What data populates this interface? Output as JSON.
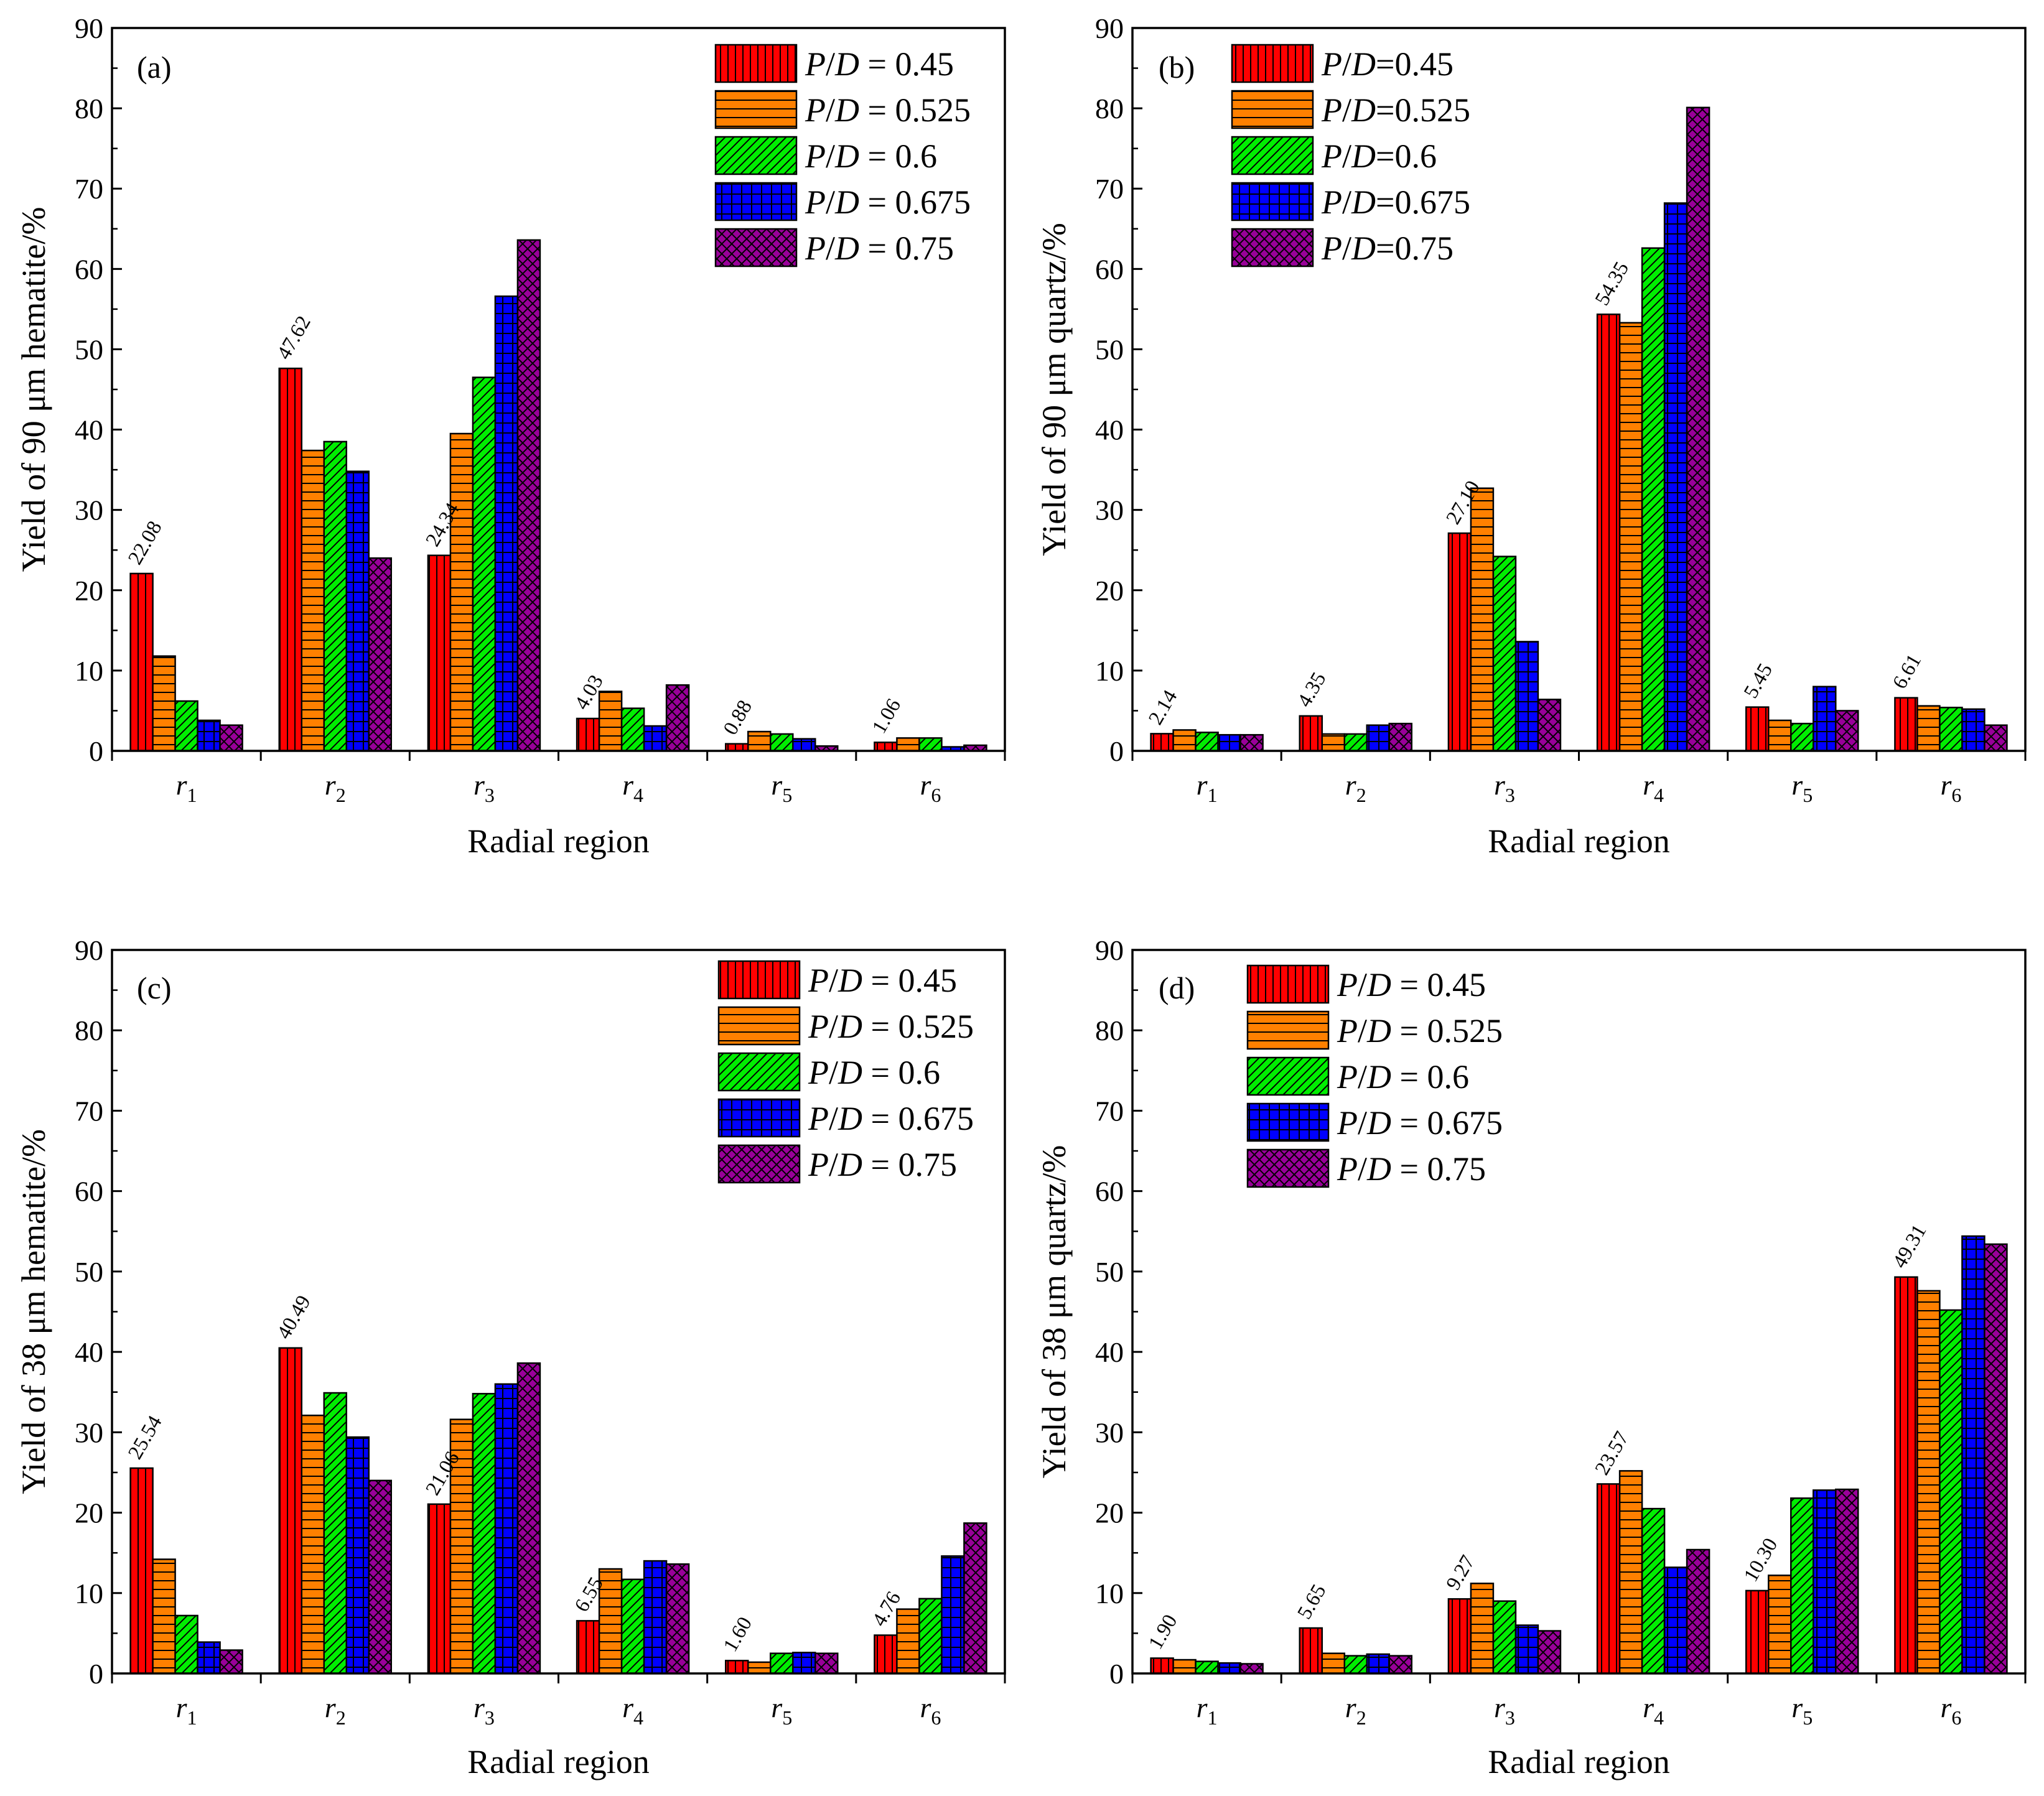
{
  "chart_data": [
    {
      "type": "bar",
      "panel": "(a)",
      "ylabel": "Yield of 90 μm hematite/%",
      "xlabel": "Radial region",
      "ylim": [
        0,
        90
      ],
      "yticks": [
        0,
        10,
        20,
        30,
        40,
        50,
        60,
        70,
        80,
        90
      ],
      "categories": [
        {
          "base": "r",
          "sub": "1"
        },
        {
          "base": "r",
          "sub": "2"
        },
        {
          "base": "r",
          "sub": "3"
        },
        {
          "base": "r",
          "sub": "4"
        },
        {
          "base": "r",
          "sub": "5"
        },
        {
          "base": "r",
          "sub": "6"
        }
      ],
      "legend_style": "spaced",
      "legend_position": "top-right",
      "series": [
        {
          "name": "0.45",
          "values": [
            22.08,
            47.62,
            24.34,
            4.03,
            0.88,
            1.06
          ],
          "labels": [
            "22.08",
            "47.62",
            "24.34",
            "4.03",
            "0.88",
            "1.06"
          ]
        },
        {
          "name": "0.525",
          "values": [
            11.8,
            37.4,
            39.5,
            7.4,
            2.4,
            1.6
          ]
        },
        {
          "name": "0.6",
          "values": [
            6.2,
            38.5,
            46.5,
            5.3,
            2.1,
            1.6
          ]
        },
        {
          "name": "0.675",
          "values": [
            3.8,
            34.8,
            56.6,
            3.1,
            1.5,
            0.5
          ]
        },
        {
          "name": "0.75",
          "values": [
            3.2,
            24.0,
            63.6,
            8.2,
            0.6,
            0.7
          ]
        }
      ]
    },
    {
      "type": "bar",
      "panel": "(b)",
      "ylabel": "Yield of 90 μm quartz/%",
      "xlabel": "Radial region",
      "ylim": [
        0,
        90
      ],
      "yticks": [
        0,
        10,
        20,
        30,
        40,
        50,
        60,
        70,
        80,
        90
      ],
      "categories": [
        {
          "base": "r",
          "sub": "1"
        },
        {
          "base": "r",
          "sub": "2"
        },
        {
          "base": "r",
          "sub": "3"
        },
        {
          "base": "r",
          "sub": "4"
        },
        {
          "base": "r",
          "sub": "5"
        },
        {
          "base": "r",
          "sub": "6"
        }
      ],
      "legend_style": "compact",
      "legend_position": "top-left",
      "series": [
        {
          "name": "0.45",
          "values": [
            2.14,
            4.35,
            27.1,
            54.35,
            5.45,
            6.61
          ],
          "labels": [
            "2.14",
            "4.35",
            "27.10",
            "54.35",
            "5.45",
            "6.61"
          ]
        },
        {
          "name": "0.525",
          "values": [
            2.6,
            2.1,
            32.7,
            53.3,
            3.8,
            5.6
          ]
        },
        {
          "name": "0.6",
          "values": [
            2.3,
            2.1,
            24.2,
            62.6,
            3.4,
            5.4
          ]
        },
        {
          "name": "0.675",
          "values": [
            2.0,
            3.2,
            13.6,
            68.2,
            8.0,
            5.2
          ]
        },
        {
          "name": "0.75",
          "values": [
            2.0,
            3.4,
            6.4,
            80.1,
            5.0,
            3.2
          ]
        }
      ]
    },
    {
      "type": "bar",
      "panel": "(c)",
      "ylabel": "Yield of 38 μm hematite/%",
      "xlabel": "Radial region",
      "ylim": [
        0,
        90
      ],
      "yticks": [
        0,
        10,
        20,
        30,
        40,
        50,
        60,
        70,
        80,
        90
      ],
      "categories": [
        {
          "base": "r",
          "sub": "1"
        },
        {
          "base": "r",
          "sub": "2"
        },
        {
          "base": "r",
          "sub": "3"
        },
        {
          "base": "r",
          "sub": "4"
        },
        {
          "base": "r",
          "sub": "5"
        },
        {
          "base": "r",
          "sub": "6"
        }
      ],
      "legend_style": "spaced",
      "legend_position": "top-right",
      "series": [
        {
          "name": "0.45",
          "values": [
            25.54,
            40.49,
            21.06,
            6.55,
            1.6,
            4.76
          ],
          "labels": [
            "25.54",
            "40.49",
            "21.06",
            "6.55",
            "1.60",
            "4.76"
          ]
        },
        {
          "name": "0.525",
          "values": [
            14.2,
            32.1,
            31.6,
            13.0,
            1.4,
            8.0
          ]
        },
        {
          "name": "0.6",
          "values": [
            7.2,
            34.9,
            34.8,
            11.7,
            2.5,
            9.3
          ]
        },
        {
          "name": "0.675",
          "values": [
            3.9,
            29.4,
            36.0,
            14.0,
            2.6,
            14.6
          ]
        },
        {
          "name": "0.75",
          "values": [
            2.9,
            24.0,
            38.6,
            13.6,
            2.5,
            18.7
          ]
        }
      ]
    },
    {
      "type": "bar",
      "panel": "(d)",
      "ylabel": "Yield of 38 μm quartz/%",
      "xlabel": "Radial region",
      "ylim": [
        0,
        90
      ],
      "yticks": [
        0,
        10,
        20,
        30,
        40,
        50,
        60,
        70,
        80,
        90
      ],
      "categories": [
        {
          "base": "r",
          "sub": "1"
        },
        {
          "base": "r",
          "sub": "2"
        },
        {
          "base": "r",
          "sub": "3"
        },
        {
          "base": "r",
          "sub": "4"
        },
        {
          "base": "r",
          "sub": "5"
        },
        {
          "base": "r",
          "sub": "6"
        }
      ],
      "legend_style": "spaced",
      "legend_position": "top-left",
      "series": [
        {
          "name": "0.45",
          "values": [
            1.9,
            5.65,
            9.27,
            23.57,
            10.3,
            49.31
          ],
          "labels": [
            "1.90",
            "5.65",
            "9.27",
            "23.57",
            "10.30",
            "49.31"
          ]
        },
        {
          "name": "0.525",
          "values": [
            1.7,
            2.5,
            11.2,
            25.2,
            12.2,
            47.6
          ]
        },
        {
          "name": "0.6",
          "values": [
            1.5,
            2.2,
            9.0,
            20.5,
            21.8,
            45.2
          ]
        },
        {
          "name": "0.675",
          "values": [
            1.3,
            2.4,
            6.0,
            13.2,
            22.8,
            54.4
          ]
        },
        {
          "name": "0.75",
          "values": [
            1.2,
            2.2,
            5.3,
            15.4,
            22.9,
            53.4
          ]
        }
      ]
    }
  ],
  "legend_prefix": "P/D",
  "series_colors": [
    "#ff0000",
    "#ff8000",
    "#00ee00",
    "#0000ff",
    "#990099"
  ],
  "series_patterns": [
    "vertical-lines",
    "horizontal-lines",
    "diagonal-lines",
    "grid",
    "crosshatch"
  ]
}
